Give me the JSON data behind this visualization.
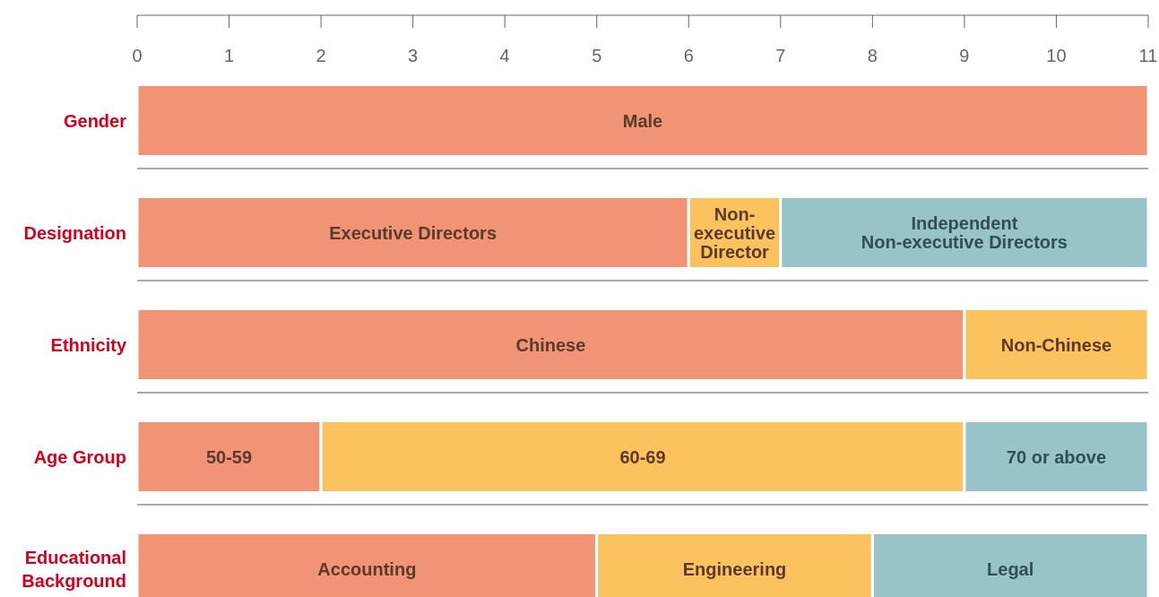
{
  "chart_data": {
    "type": "bar",
    "orientation": "horizontal",
    "stacked": true,
    "grid": false,
    "categories": [
      "Gender",
      "Designation",
      "Ethnicity",
      "Age Group",
      "Educational Background"
    ],
    "xlim": [
      0,
      11
    ],
    "xticks": [
      0,
      1,
      2,
      3,
      4,
      5,
      6,
      7,
      8,
      9,
      10,
      11
    ],
    "series": [
      {
        "name": "Male",
        "color": "#f19475",
        "values": [
          11,
          null,
          null,
          null,
          null
        ]
      },
      {
        "name": "Executive Directors",
        "color": "#f19475",
        "values": [
          null,
          6,
          null,
          null,
          null
        ]
      },
      {
        "name": "Chinese",
        "color": "#f19475",
        "values": [
          null,
          null,
          9,
          null,
          null
        ]
      },
      {
        "name": "50-59",
        "color": "#f19475",
        "values": [
          null,
          null,
          null,
          2,
          null
        ]
      },
      {
        "name": "Accounting",
        "color": "#f19475",
        "values": [
          null,
          null,
          null,
          null,
          5
        ]
      },
      {
        "name": "Non-\nexecutive\nDirector",
        "color": "#fbc25e",
        "values": [
          null,
          1,
          null,
          null,
          null
        ]
      },
      {
        "name": "Non-Chinese",
        "color": "#fbc25e",
        "values": [
          null,
          null,
          2,
          null,
          null
        ]
      },
      {
        "name": "60-69",
        "color": "#fbc25e",
        "values": [
          null,
          null,
          null,
          7,
          null
        ]
      },
      {
        "name": "Engineering",
        "color": "#fbc25e",
        "values": [
          null,
          null,
          null,
          null,
          3
        ]
      },
      {
        "name": "Independent\nNon-executive Directors",
        "color": "#98c4c9",
        "values": [
          null,
          4,
          null,
          null,
          null
        ]
      },
      {
        "name": "70 or above",
        "color": "#98c4c9",
        "values": [
          null,
          null,
          null,
          2,
          null
        ]
      },
      {
        "name": "Legal",
        "color": "#98c4c9",
        "values": [
          null,
          null,
          null,
          null,
          3
        ]
      }
    ]
  }
}
